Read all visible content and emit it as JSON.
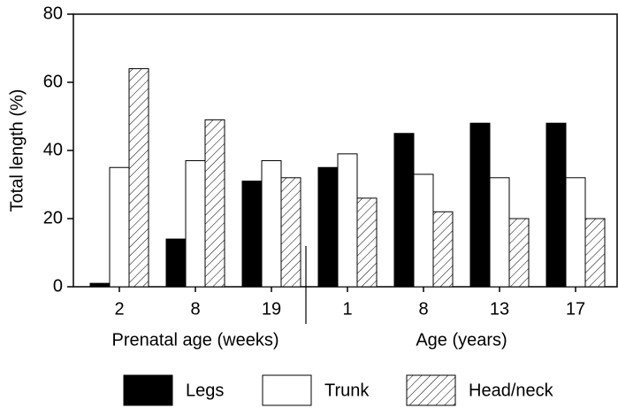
{
  "chart_data": {
    "type": "bar",
    "ylabel": "Total length (%)",
    "groups": [
      {
        "label": "Prenatal age (weeks)",
        "categories": [
          "2",
          "8",
          "19"
        ]
      },
      {
        "label": "Age (years)",
        "categories": [
          "1",
          "8",
          "13",
          "17"
        ]
      }
    ],
    "series": [
      {
        "name": "Legs",
        "color": "#000000",
        "values": [
          1,
          14,
          31,
          35,
          45,
          48,
          48
        ]
      },
      {
        "name": "Trunk",
        "color": "#ffffff",
        "values": [
          35,
          37,
          37,
          39,
          33,
          32,
          32
        ]
      },
      {
        "name": "Head/neck",
        "color": "#ffffff",
        "hatch": true,
        "values": [
          64,
          49,
          32,
          26,
          22,
          20,
          20
        ]
      }
    ],
    "ylim": [
      0,
      80
    ],
    "yticks": [
      0,
      20,
      40,
      60,
      80
    ],
    "grid": false
  }
}
